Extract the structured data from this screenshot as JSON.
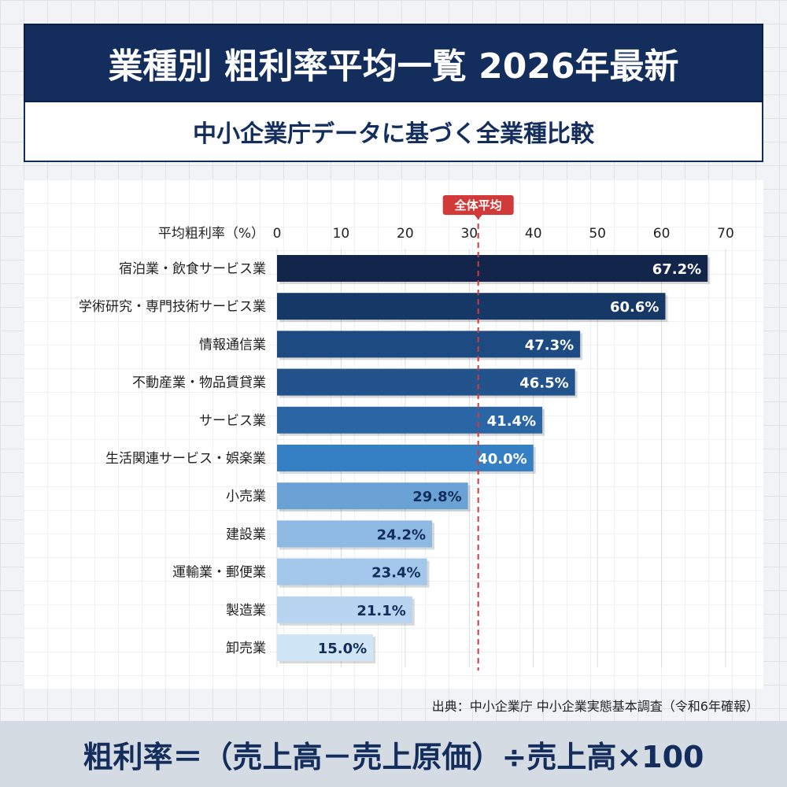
{
  "header": {
    "title": "業種別 粗利率平均一覧 2026年最新",
    "subtitle": "中小企業庁データに基づく全業種比較"
  },
  "chart_data": {
    "type": "bar",
    "orientation": "horizontal",
    "xlabel": "平均粗利率（%）",
    "xlim": [
      0,
      70
    ],
    "ticks": [
      0,
      10,
      20,
      30,
      40,
      50,
      60,
      70
    ],
    "grid": true,
    "categories": [
      "宿泊業・飲食サービス業",
      "学術研究・専門技術サービス業",
      "情報通信業",
      "不動産業・物品賃貸業",
      "サービス業",
      "生活関連サービス・娯楽業",
      "小売業",
      "建設業",
      "運輸業・郵便業",
      "製造業",
      "卸売業"
    ],
    "values": [
      67.2,
      60.6,
      47.3,
      46.5,
      41.4,
      40.0,
      29.8,
      24.2,
      23.4,
      21.1,
      15.0
    ],
    "data_labels": [
      "67.2%",
      "60.6%",
      "47.3%",
      "46.5%",
      "41.4%",
      "40.0%",
      "29.8%",
      "24.2%",
      "23.4%",
      "21.1%",
      "15.0%"
    ],
    "bar_colors": [
      "#13254b",
      "#163866",
      "#1d4a80",
      "#22538c",
      "#2a65a6",
      "#3580c4",
      "#6aa2d6",
      "#8db9e2",
      "#a2c7ea",
      "#b7d5f0",
      "#d0e6f7"
    ],
    "reference_line": {
      "label": "全体平均",
      "value": 31.4,
      "color": "#d23a3a"
    }
  },
  "footer": {
    "source": "出典：中小企業庁 中小企業実態基本調査（令和6年確報）",
    "formula": "粗利率＝（売上高－売上原価）÷売上高×100"
  }
}
